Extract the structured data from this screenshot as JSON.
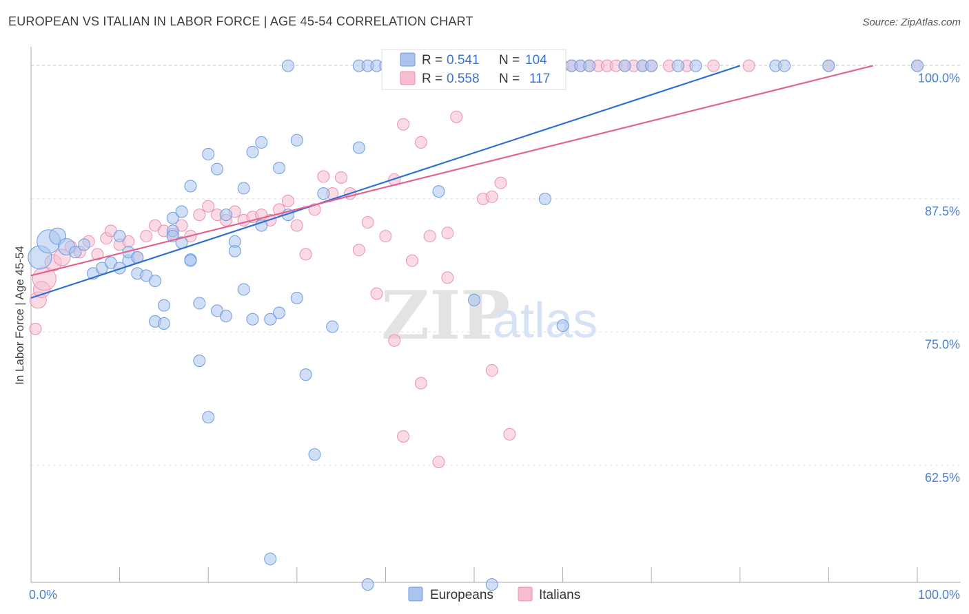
{
  "title": "EUROPEAN VS ITALIAN IN LABOR FORCE | AGE 45-54 CORRELATION CHART",
  "source": "Source: ZipAtlas.com",
  "watermark": {
    "zip": "ZIP",
    "atlas": "atlas"
  },
  "legend": {
    "r_label": "R =",
    "n_label": "N =",
    "rows": [
      {
        "r": "0.541",
        "n": "104"
      },
      {
        "r": "0.558",
        "n": "117"
      }
    ]
  },
  "bottom_legend": [
    "Europeans",
    "Italians"
  ],
  "colors": {
    "blue_fill": "#a9c4ef",
    "blue_stroke": "#6f9be0",
    "blue_line": "#2f6fd4",
    "pink_fill": "#f6bdd0",
    "pink_stroke": "#ec8fb0",
    "pink_line": "#e0628e",
    "grid": "#e3e3e3",
    "tick_text": "#4a7fd1"
  },
  "chart_data": {
    "type": "scatter",
    "title": "EUROPEAN VS ITALIAN IN LABOR FORCE | AGE 45-54 CORRELATION CHART",
    "xlabel": "",
    "ylabel": "In Labor Force | Age 45-54",
    "xlim": [
      0,
      100
    ],
    "ylim": [
      51.5,
      101
    ],
    "x_tick_labels": [
      "0.0%",
      "100.0%"
    ],
    "y_ticks": [
      62.5,
      75.0,
      87.5,
      100.0
    ],
    "y_tick_labels": [
      "62.5%",
      "75.0%",
      "87.5%",
      "100.0%"
    ],
    "grid": true,
    "legend_position": "top-center",
    "series": [
      {
        "name": "Europeans",
        "r": 0.541,
        "n": 104,
        "trend": [
          [
            0,
            78.2
          ],
          [
            80,
            100.0
          ]
        ],
        "points": [
          [
            1,
            82,
            3
          ],
          [
            2,
            83.5,
            3
          ],
          [
            3,
            84,
            2
          ],
          [
            4,
            83,
            2
          ],
          [
            5,
            82.5,
            1
          ],
          [
            6,
            83.2,
            1
          ],
          [
            7,
            80.5,
            1
          ],
          [
            8,
            81,
            1
          ],
          [
            9,
            81.5,
            1
          ],
          [
            10,
            81,
            1
          ],
          [
            10,
            84,
            1
          ],
          [
            11,
            81.7,
            1
          ],
          [
            11,
            82.5,
            1
          ],
          [
            12,
            80.5,
            1
          ],
          [
            12,
            82,
            1
          ],
          [
            13,
            80.3,
            1
          ],
          [
            14,
            79.8,
            1
          ],
          [
            14,
            76,
            1
          ],
          [
            15,
            77.5,
            1
          ],
          [
            15,
            75.8,
            1
          ],
          [
            16,
            85.7,
            1
          ],
          [
            16,
            84.5,
            1
          ],
          [
            16,
            84,
            1
          ],
          [
            17,
            83.4,
            1
          ],
          [
            17,
            86.3,
            1
          ],
          [
            18,
            81.8,
            1
          ],
          [
            18,
            81.7,
            1
          ],
          [
            18,
            88.7,
            1
          ],
          [
            19,
            77.7,
            1
          ],
          [
            19,
            72.3,
            1
          ],
          [
            20,
            67,
            1
          ],
          [
            20,
            91.7,
            1
          ],
          [
            21,
            90.3,
            1
          ],
          [
            21,
            77,
            1
          ],
          [
            22,
            76.5,
            1
          ],
          [
            22,
            86,
            1
          ],
          [
            23,
            82.6,
            1
          ],
          [
            23,
            83.5,
            1
          ],
          [
            24,
            88.5,
            1
          ],
          [
            24,
            79,
            1
          ],
          [
            25,
            76.2,
            1
          ],
          [
            25,
            91.9,
            1
          ],
          [
            26,
            85,
            1
          ],
          [
            26,
            92.8,
            1
          ],
          [
            27,
            76.2,
            1
          ],
          [
            27,
            53.7,
            1
          ],
          [
            28,
            90.4,
            1
          ],
          [
            28,
            76.8,
            1
          ],
          [
            29,
            86,
            1
          ],
          [
            30,
            93,
            1
          ],
          [
            30,
            78.2,
            1
          ],
          [
            31,
            71,
            1
          ],
          [
            32,
            63.5,
            1
          ],
          [
            33,
            88,
            1
          ],
          [
            34,
            75.5,
            1
          ],
          [
            37,
            92.3,
            1
          ],
          [
            38,
            51.3,
            1
          ],
          [
            46,
            88.2,
            1
          ],
          [
            50,
            78,
            1
          ],
          [
            52,
            51.3,
            1
          ],
          [
            58,
            87.5,
            1
          ],
          [
            60,
            75.6,
            1
          ],
          [
            29,
            100,
            1
          ],
          [
            37,
            100,
            1
          ],
          [
            38,
            100,
            1
          ],
          [
            39,
            100,
            1
          ],
          [
            40,
            100,
            1
          ],
          [
            41,
            100,
            1
          ],
          [
            42,
            100,
            1
          ],
          [
            43,
            100,
            1
          ],
          [
            44,
            100,
            1
          ],
          [
            45,
            100,
            1
          ],
          [
            46,
            100,
            1
          ],
          [
            47,
            100,
            1
          ],
          [
            48,
            100,
            1
          ],
          [
            49,
            100,
            1
          ],
          [
            50,
            100,
            1
          ],
          [
            51,
            100,
            1
          ],
          [
            52,
            100,
            1
          ],
          [
            53,
            100,
            1
          ],
          [
            54,
            100,
            1
          ],
          [
            55,
            100,
            1
          ],
          [
            61,
            100,
            1
          ],
          [
            62,
            100,
            1
          ],
          [
            63,
            100,
            1
          ],
          [
            67,
            100,
            1
          ],
          [
            69,
            100,
            1
          ],
          [
            70,
            100,
            1
          ],
          [
            73,
            100,
            1
          ],
          [
            75,
            100,
            1
          ],
          [
            84,
            100,
            1
          ],
          [
            85,
            100,
            1
          ],
          [
            90,
            100,
            1
          ],
          [
            100,
            100,
            1
          ]
        ]
      },
      {
        "name": "Italians",
        "r": 0.558,
        "n": 117,
        "trend": [
          [
            0,
            80.3
          ],
          [
            95,
            100.0
          ]
        ],
        "points": [
          [
            0.5,
            75.3,
            1
          ],
          [
            0.8,
            78,
            2
          ],
          [
            1.2,
            79,
            2
          ],
          [
            1.5,
            80,
            3
          ],
          [
            2.5,
            81.5,
            2
          ],
          [
            3.5,
            82,
            2
          ],
          [
            4.5,
            83,
            1
          ],
          [
            5.5,
            82.5,
            1
          ],
          [
            6.5,
            83.5,
            1
          ],
          [
            7.5,
            82.3,
            1
          ],
          [
            8.5,
            83.8,
            1
          ],
          [
            9,
            84.5,
            1
          ],
          [
            10,
            83.2,
            1
          ],
          [
            11,
            83.5,
            1
          ],
          [
            12,
            82,
            1
          ],
          [
            13,
            84,
            1
          ],
          [
            14,
            85,
            1
          ],
          [
            15,
            84.5,
            1
          ],
          [
            16,
            84.2,
            1
          ],
          [
            17,
            85,
            1
          ],
          [
            18,
            84,
            1
          ],
          [
            19,
            86,
            1
          ],
          [
            20,
            86.8,
            1
          ],
          [
            21,
            86,
            1
          ],
          [
            22,
            85.5,
            1
          ],
          [
            23,
            86.3,
            1
          ],
          [
            24,
            85.5,
            1
          ],
          [
            25,
            85.8,
            1
          ],
          [
            26,
            86,
            1
          ],
          [
            27,
            85.5,
            1
          ],
          [
            28,
            86.5,
            1
          ],
          [
            29,
            87.3,
            1
          ],
          [
            30,
            85,
            1
          ],
          [
            31,
            82.3,
            1
          ],
          [
            32,
            86.5,
            1
          ],
          [
            33,
            89.6,
            1
          ],
          [
            34,
            88,
            1
          ],
          [
            35,
            89.5,
            1
          ],
          [
            36,
            88,
            1
          ],
          [
            37,
            82.7,
            1
          ],
          [
            38,
            85.3,
            1
          ],
          [
            39,
            78.6,
            1
          ],
          [
            40,
            84,
            1
          ],
          [
            41,
            89.3,
            1
          ],
          [
            41,
            74.2,
            1
          ],
          [
            42,
            94.5,
            1
          ],
          [
            42,
            65.2,
            1
          ],
          [
            43,
            81.7,
            1
          ],
          [
            44,
            92.8,
            1
          ],
          [
            44,
            70.2,
            1
          ],
          [
            45,
            84,
            1
          ],
          [
            46,
            62.8,
            1
          ],
          [
            47,
            80.1,
            1
          ],
          [
            47,
            84.3,
            1
          ],
          [
            48,
            95.2,
            1
          ],
          [
            51,
            87.5,
            1
          ],
          [
            52,
            71.4,
            1
          ],
          [
            52,
            87.7,
            1
          ],
          [
            53,
            89,
            1
          ],
          [
            54,
            65.4,
            1
          ],
          [
            58,
            100,
            1
          ],
          [
            60,
            100,
            1
          ],
          [
            61,
            100,
            1
          ],
          [
            62,
            100,
            1
          ],
          [
            63,
            100,
            1
          ],
          [
            64,
            100,
            1
          ],
          [
            65,
            100,
            1
          ],
          [
            66,
            100,
            1
          ],
          [
            67,
            100,
            1
          ],
          [
            68,
            100,
            1
          ],
          [
            69,
            100,
            1
          ],
          [
            70,
            100,
            1
          ],
          [
            72,
            100,
            1
          ],
          [
            74,
            100,
            1
          ],
          [
            77,
            100,
            1
          ],
          [
            81,
            100,
            1
          ],
          [
            90,
            100,
            1
          ],
          [
            100,
            100,
            1
          ]
        ]
      }
    ]
  }
}
